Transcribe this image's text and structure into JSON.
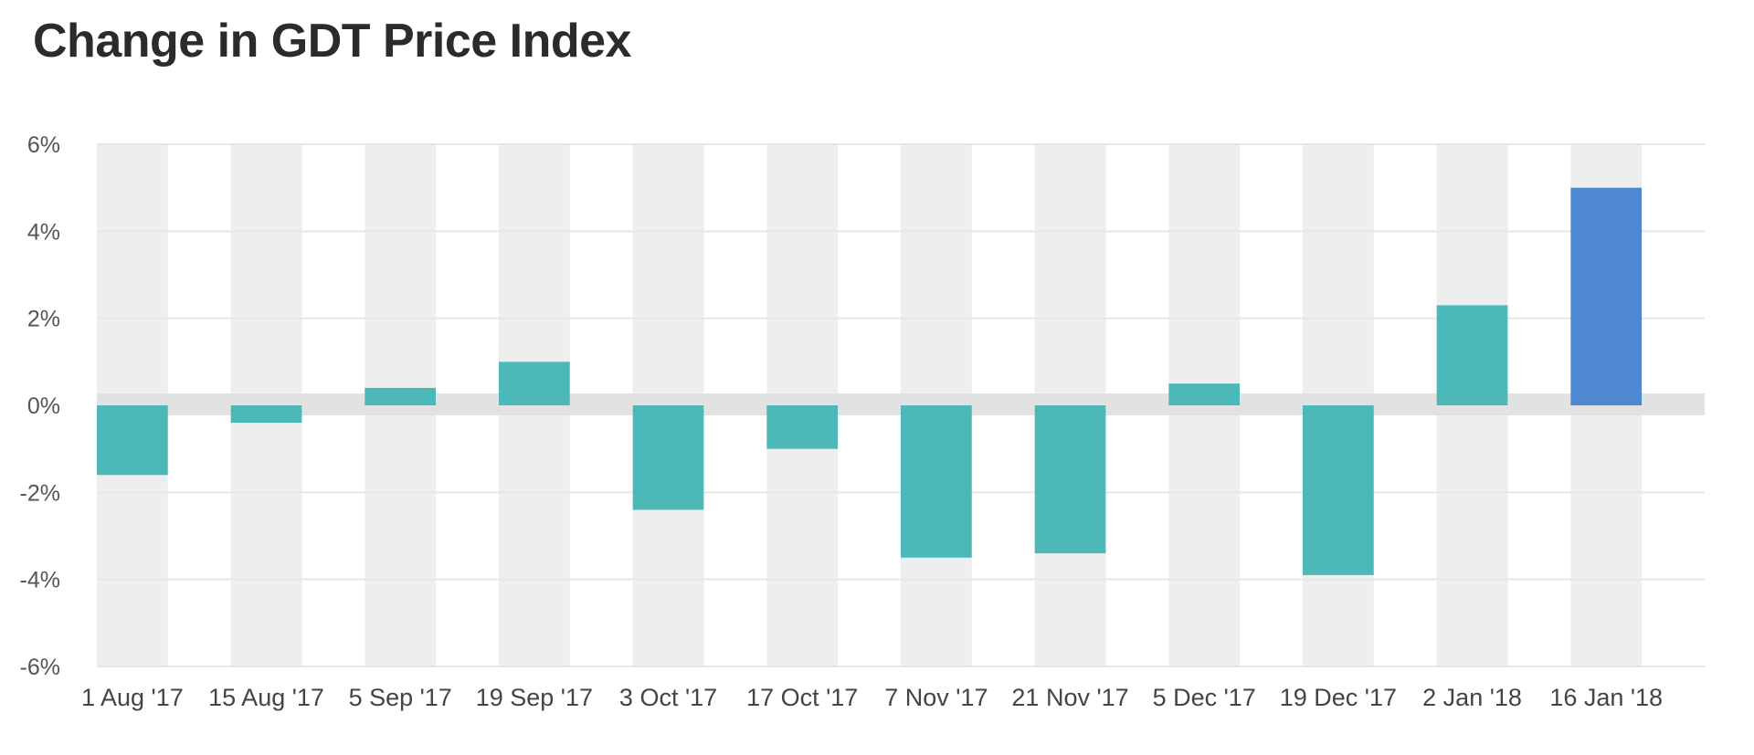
{
  "chart_data": {
    "type": "bar",
    "title": "Change in GDT Price Index",
    "xlabel": "",
    "ylabel": "",
    "ylim": [
      -6,
      6
    ],
    "yticks": [
      6,
      4,
      2,
      0,
      -2,
      -4,
      -6
    ],
    "y_tick_labels": [
      "6%",
      "4%",
      "2%",
      "0%",
      "-2%",
      "-4%",
      "-6%"
    ],
    "categories": [
      "1 Aug '17",
      "15 Aug '17",
      "5 Sep '17",
      "19 Sep '17",
      "3 Oct '17",
      "17 Oct '17",
      "7 Nov '17",
      "21 Nov '17",
      "5 Dec '17",
      "19 Dec '17",
      "2 Jan '18",
      "16 Jan '18"
    ],
    "values": [
      -1.6,
      -0.4,
      0.4,
      1.0,
      -2.4,
      -1.0,
      -3.5,
      -3.4,
      0.5,
      -3.9,
      2.3,
      5.0
    ],
    "grid": true,
    "colors": {
      "bar": "#4cb8b8",
      "highlight": "#4e88d0",
      "band": "#eeeeee",
      "zero_band": "#e2e2e2"
    },
    "highlight_index": 11
  }
}
